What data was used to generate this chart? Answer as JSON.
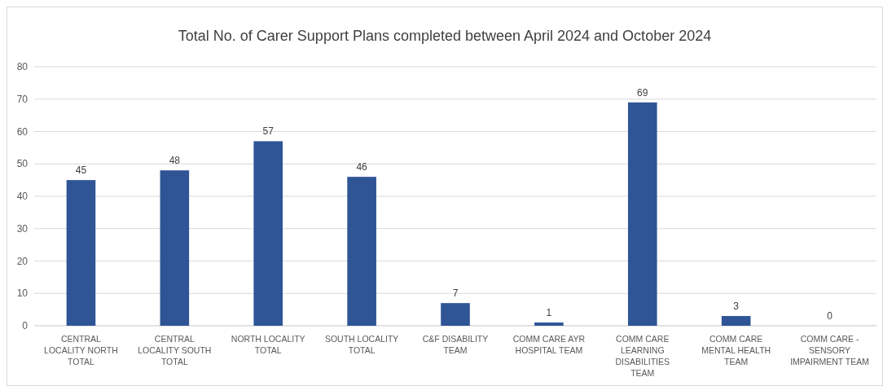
{
  "chart_data": {
    "type": "bar",
    "title": "Total No. of Carer Support Plans completed between April 2024 and October 2024",
    "categories": [
      "CENTRAL LOCALITY NORTH  TOTAL",
      "CENTRAL LOCALITY SOUTH TOTAL",
      "NORTH LOCALITY TOTAL",
      "SOUTH LOCALITY TOTAL",
      "C&F DISABILITY TEAM",
      "COMM CARE AYR HOSPITAL TEAM",
      "COMM CARE LEARNING DISABILITIES TEAM",
      "COMM CARE MENTAL HEALTH TEAM",
      "COMM CARE - SENSORY IMPAIRMENT TEAM"
    ],
    "values": [
      45,
      48,
      57,
      46,
      7,
      1,
      69,
      3,
      0
    ],
    "color": "#2f5597",
    "ylim": [
      0,
      80
    ],
    "yticks": [
      0,
      10,
      20,
      30,
      40,
      50,
      60,
      70,
      80
    ],
    "grid": "y",
    "data_labels": true
  }
}
